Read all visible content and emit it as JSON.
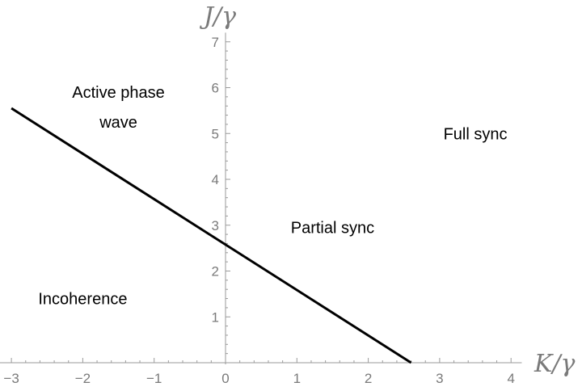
{
  "chart_data": {
    "type": "line",
    "title": "",
    "xlabel": "K/γ",
    "ylabel": "J/γ",
    "xlim": [
      -3.1,
      4.15
    ],
    "ylim": [
      0,
      7.2
    ],
    "x_ticks": [
      -3,
      -2,
      -1,
      0,
      1,
      2,
      3,
      4
    ],
    "x_tick_labels": [
      "−3",
      "−2",
      "−1",
      "0",
      "1",
      "2",
      "3",
      "4"
    ],
    "y_ticks": [
      1,
      2,
      3,
      4,
      5,
      6,
      7
    ],
    "y_tick_labels": [
      "1",
      "2",
      "3",
      "4",
      "5",
      "6",
      "7"
    ],
    "grid": false,
    "series": [
      {
        "x": [
          -3.0,
          2.6
        ],
        "y": [
          5.55,
          0.0
        ]
      }
    ],
    "annotations": [
      {
        "lines": [
          "Active phase",
          "wave"
        ],
        "x": -1.5,
        "y": 5.9
      },
      {
        "lines": [
          "Full sync"
        ],
        "x": 3.5,
        "y": 5.0
      },
      {
        "lines": [
          "Partial sync"
        ],
        "x": 1.5,
        "y": 2.95
      },
      {
        "lines": [
          "Incoherence"
        ],
        "x": -2.0,
        "y": 1.4
      }
    ],
    "colors": {
      "axis": "#9a9a9a",
      "line": "#000000",
      "tick_label": "#7a7a7a"
    }
  }
}
